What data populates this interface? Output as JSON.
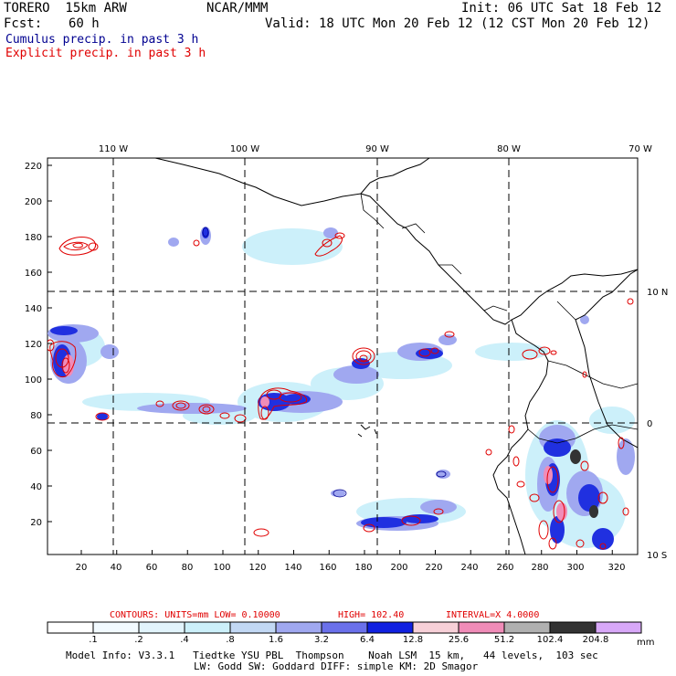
{
  "header": {
    "model": "TORERO  15km ARW",
    "org": "NCAR/MMM",
    "init": "Init: 06 UTC Sat 18 Feb 12",
    "fcst_label": "Fcst:",
    "fcst_value": "60 h",
    "valid": "Valid: 18 UTC Mon 20 Feb 12 (12 CST Mon 20 Feb 12)",
    "line_cumulus": "Cumulus precip. in past 3 h",
    "line_explicit": "Explicit precip. in past 3 h",
    "color_cumulus": "#000090",
    "color_explicit": "#e00000"
  },
  "top_axis": [
    "110 W",
    "100 W",
    "90 W",
    "80 W",
    "70 W"
  ],
  "left_axis": [
    "220",
    "200",
    "180",
    "160",
    "140",
    "120",
    "100",
    "80",
    "60",
    "40",
    "20"
  ],
  "bottom_axis": [
    "20",
    "40",
    "60",
    "80",
    "100",
    "120",
    "140",
    "160",
    "180",
    "200",
    "220",
    "240",
    "260",
    "280",
    "300",
    "320"
  ],
  "right_axis": [
    "10 N",
    "0",
    "10 S"
  ],
  "contours_line": {
    "label": "CONTOURS:  UNITS=mm  LOW= 0.10000",
    "high": "HIGH=  102.40",
    "interval": "INTERVAL=X  4.0000"
  },
  "legend": {
    "labels": [
      ".1",
      ".2",
      ".4",
      ".8",
      "1.6",
      "3.2",
      "6.4",
      "12.8",
      "25.6",
      "51.2",
      "102.4",
      "204.8"
    ],
    "unit": "mm",
    "colors": [
      "#ffffff",
      "#f2faff",
      "#e2f4fc",
      "#ccf0fa",
      "#c2d8f4",
      "#a0a8f0",
      "#6a70ea",
      "#1020e0",
      "#f7d0d8",
      "#f08cb8",
      "#b0b0b0",
      "#333333",
      "#d8a8f8"
    ]
  },
  "footer": {
    "line1": "Model Info: V3.3.1   Tiedtke YSU PBL  Thompson    Noah LSM  15 km,   44 levels,  103 sec",
    "line2": "LW: Godd SW: Goddard DIFF: simple KM: 2D Smagor"
  }
}
